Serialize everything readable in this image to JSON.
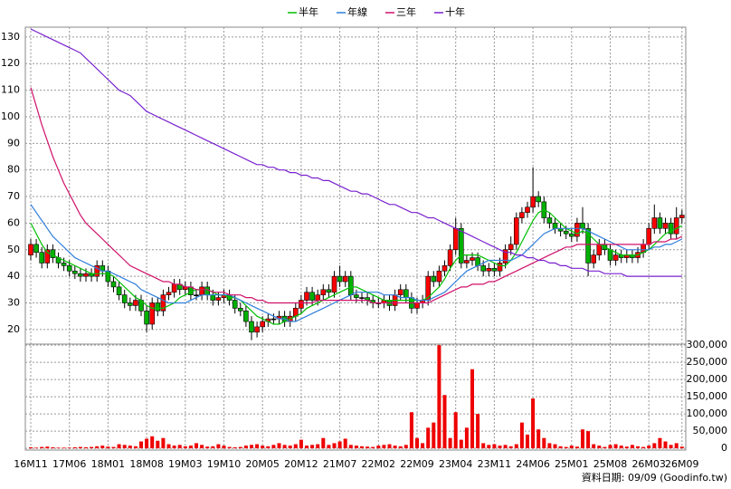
{
  "chart_data": [
    {
      "type": "candlestick",
      "categories": [
        "16M11",
        null,
        null,
        null,
        null,
        null,
        null,
        "17M06",
        null,
        null,
        null,
        null,
        null,
        null,
        "18M01",
        null,
        null,
        null,
        null,
        null,
        null,
        "18M08",
        null,
        null,
        null,
        null,
        null,
        null,
        "19M03",
        null,
        null,
        null,
        null,
        null,
        null,
        "19M10",
        null,
        null,
        null,
        null,
        null,
        null,
        "20M05",
        null,
        null,
        null,
        null,
        null,
        null,
        "20M12",
        null,
        null,
        null,
        null,
        null,
        null,
        "21M07",
        null,
        null,
        null,
        null,
        null,
        null,
        "22M02",
        null,
        null,
        null,
        null,
        null,
        null,
        "22M09",
        null,
        null,
        null,
        null,
        null,
        null,
        "23M04",
        null,
        null,
        null,
        null,
        null,
        null,
        "23M11",
        null,
        null,
        null,
        null,
        null,
        null,
        "24M06",
        null,
        null,
        null,
        null,
        null,
        null,
        "25M01",
        null,
        null,
        null,
        null,
        null,
        null,
        "25M08",
        null,
        null,
        null,
        null,
        null,
        null,
        "26M03",
        null,
        null,
        null,
        null,
        null,
        "26M09"
      ],
      "open": [
        48,
        52,
        49,
        45,
        50,
        47,
        45,
        44,
        42,
        41,
        40,
        41,
        40,
        44,
        42,
        38,
        36,
        33,
        30,
        29,
        31,
        27,
        22,
        30,
        27,
        33,
        34,
        37,
        35,
        36,
        33,
        33,
        36,
        33,
        31,
        32,
        33,
        31,
        28,
        27,
        23,
        19,
        21,
        23,
        24,
        24,
        25,
        23,
        25,
        28,
        31,
        34,
        31,
        33,
        35,
        34,
        40,
        38,
        40,
        33,
        32,
        32,
        31,
        30,
        30,
        31,
        29,
        33,
        35,
        32,
        28,
        30,
        31,
        40,
        38,
        42,
        44,
        50,
        58,
        45,
        46,
        47,
        44,
        42,
        43,
        42,
        45,
        50,
        52,
        62,
        64,
        66,
        70,
        68,
        62,
        60,
        58,
        57,
        56,
        55,
        60,
        58,
        45,
        48,
        52,
        50,
        46,
        48,
        47,
        48,
        47,
        49,
        52,
        58,
        62,
        58,
        60,
        56,
        62
      ],
      "high": [
        54,
        54,
        51,
        52,
        52,
        49,
        47,
        46,
        44,
        43,
        43,
        43,
        46,
        46,
        44,
        40,
        38,
        35,
        32,
        33,
        33,
        29,
        32,
        32,
        35,
        36,
        39,
        39,
        38,
        38,
        35,
        38,
        38,
        35,
        34,
        35,
        35,
        33,
        30,
        29,
        25,
        23,
        25,
        26,
        26,
        27,
        27,
        27,
        30,
        33,
        36,
        36,
        35,
        37,
        37,
        42,
        44,
        42,
        42,
        35,
        34,
        34,
        33,
        32,
        33,
        33,
        35,
        37,
        37,
        34,
        32,
        33,
        42,
        42,
        44,
        46,
        52,
        62,
        60,
        48,
        49,
        49,
        46,
        45,
        45,
        47,
        52,
        55,
        64,
        66,
        68,
        81,
        72,
        70,
        64,
        62,
        60,
        59,
        58,
        62,
        66,
        60,
        50,
        54,
        54,
        52,
        50,
        50,
        50,
        50,
        51,
        54,
        60,
        67,
        64,
        62,
        62,
        66,
        65
      ],
      "low": [
        46,
        47,
        43,
        43,
        45,
        43,
        42,
        40,
        39,
        38,
        38,
        38,
        38,
        40,
        36,
        34,
        31,
        28,
        27,
        27,
        25,
        19,
        20,
        25,
        25,
        31,
        32,
        33,
        33,
        31,
        31,
        31,
        31,
        29,
        29,
        30,
        29,
        26,
        25,
        21,
        16,
        17,
        19,
        21,
        22,
        22,
        21,
        21,
        23,
        26,
        29,
        29,
        29,
        31,
        32,
        32,
        36,
        36,
        31,
        30,
        30,
        29,
        28,
        28,
        28,
        27,
        27,
        31,
        30,
        26,
        26,
        28,
        29,
        36,
        36,
        40,
        42,
        48,
        43,
        43,
        44,
        42,
        40,
        40,
        40,
        40,
        43,
        48,
        50,
        60,
        62,
        64,
        66,
        60,
        58,
        56,
        55,
        54,
        53,
        53,
        56,
        40,
        43,
        46,
        48,
        44,
        44,
        45,
        45,
        45,
        45,
        47,
        50,
        56,
        56,
        56,
        54,
        54,
        60
      ],
      "close": [
        52,
        49,
        45,
        50,
        47,
        45,
        44,
        42,
        41,
        40,
        41,
        40,
        44,
        42,
        38,
        36,
        33,
        30,
        29,
        31,
        27,
        22,
        30,
        27,
        33,
        34,
        37,
        35,
        36,
        33,
        33,
        36,
        33,
        31,
        32,
        33,
        31,
        28,
        27,
        23,
        19,
        21,
        23,
        24,
        24,
        25,
        23,
        25,
        28,
        31,
        34,
        31,
        33,
        35,
        34,
        40,
        38,
        40,
        33,
        32,
        32,
        31,
        30,
        30,
        31,
        29,
        33,
        35,
        32,
        28,
        30,
        31,
        40,
        38,
        42,
        44,
        50,
        58,
        45,
        46,
        47,
        44,
        42,
        43,
        42,
        45,
        50,
        52,
        62,
        64,
        66,
        70,
        68,
        62,
        60,
        58,
        57,
        56,
        55,
        60,
        58,
        45,
        48,
        52,
        50,
        46,
        48,
        47,
        48,
        47,
        49,
        52,
        58,
        62,
        58,
        60,
        56,
        62,
        63
      ],
      "up_color": "#ff0000",
      "down_color": "#00b000",
      "series": [
        {
          "name": "半年",
          "color": "#00c000",
          "values": [
            60,
            56,
            52,
            49,
            48,
            47,
            46,
            45,
            44,
            43,
            42,
            41,
            41,
            41,
            41,
            40,
            38,
            36,
            34,
            32,
            31,
            29,
            28,
            28,
            28,
            29,
            30,
            32,
            33,
            34,
            35,
            35,
            35,
            34,
            33,
            33,
            32,
            32,
            31,
            29,
            27,
            25,
            24,
            23,
            22,
            22,
            23,
            24,
            25,
            26,
            28,
            29,
            30,
            31,
            32,
            33,
            34,
            35,
            36,
            36,
            35,
            34,
            33,
            32,
            31,
            31,
            31,
            31,
            31,
            31,
            31,
            31,
            32,
            34,
            36,
            39,
            43,
            46,
            48,
            48,
            48,
            48,
            47,
            46,
            45,
            44,
            44,
            46,
            49,
            53,
            57,
            61,
            64,
            65,
            64,
            62,
            60,
            58,
            57,
            56,
            57,
            56,
            54,
            52,
            51,
            50,
            49,
            48,
            48,
            48,
            48,
            49,
            50,
            52,
            54,
            56,
            57,
            58,
            59
          ]
        },
        {
          "name": "年線",
          "color": "#2f7fdc",
          "values": [
            67,
            64,
            61,
            58,
            55,
            53,
            51,
            49,
            47,
            46,
            45,
            44,
            43,
            42,
            42,
            41,
            40,
            39,
            38,
            37,
            35,
            34,
            33,
            32,
            31,
            30,
            30,
            30,
            30,
            31,
            32,
            33,
            33,
            33,
            33,
            33,
            33,
            32,
            31,
            30,
            29,
            28,
            27,
            26,
            25,
            24,
            24,
            23,
            23,
            24,
            25,
            26,
            27,
            28,
            29,
            30,
            31,
            32,
            33,
            34,
            34,
            34,
            34,
            34,
            33,
            33,
            33,
            32,
            32,
            32,
            31,
            31,
            31,
            32,
            33,
            34,
            36,
            38,
            40,
            42,
            43,
            44,
            45,
            46,
            46,
            46,
            46,
            46,
            47,
            48,
            50,
            52,
            54,
            56,
            57,
            58,
            58,
            58,
            58,
            58,
            58,
            57,
            56,
            55,
            54,
            53,
            52,
            51,
            50,
            50,
            50,
            50,
            50,
            51,
            51,
            52,
            52,
            53,
            54
          ]
        },
        {
          "name": "三年",
          "color": "#d0106a",
          "values": [
            111,
            104,
            97,
            91,
            85,
            80,
            75,
            71,
            67,
            63,
            60,
            58,
            56,
            54,
            52,
            50,
            48,
            46,
            44,
            43,
            42,
            41,
            40,
            39,
            38,
            38,
            37,
            37,
            36,
            36,
            35,
            35,
            35,
            34,
            34,
            34,
            33,
            33,
            33,
            32,
            32,
            31,
            31,
            30,
            30,
            30,
            30,
            30,
            30,
            30,
            30,
            30,
            31,
            31,
            31,
            31,
            31,
            31,
            31,
            31,
            31,
            31,
            30,
            30,
            30,
            30,
            30,
            30,
            30,
            30,
            30,
            30,
            30,
            31,
            32,
            33,
            34,
            35,
            36,
            36,
            37,
            37,
            37,
            38,
            38,
            39,
            40,
            41,
            42,
            43,
            44,
            45,
            46,
            47,
            48,
            49,
            50,
            51,
            51,
            52,
            52,
            52,
            52,
            52,
            52,
            52,
            52,
            52,
            52,
            52,
            52,
            52,
            52,
            53,
            53,
            53,
            54,
            54,
            55
          ]
        },
        {
          "name": "十年",
          "color": "#7a22d0",
          "values": [
            133,
            132,
            131,
            130,
            129,
            128,
            127,
            126,
            125,
            124,
            122,
            120,
            118,
            116,
            114,
            112,
            110,
            109,
            108,
            106,
            104,
            102,
            101,
            100,
            99,
            98,
            97,
            96,
            95,
            94,
            93,
            92,
            91,
            90,
            89,
            88,
            87,
            86,
            85,
            84,
            83,
            82,
            82,
            81,
            81,
            80,
            80,
            79,
            79,
            78,
            78,
            77,
            77,
            76,
            76,
            75,
            74,
            73,
            72,
            72,
            71,
            71,
            70,
            69,
            68,
            67,
            67,
            66,
            65,
            64,
            64,
            63,
            62,
            62,
            61,
            60,
            59,
            58,
            57,
            56,
            55,
            54,
            53,
            52,
            51,
            50,
            49,
            49,
            48,
            48,
            47,
            47,
            46,
            46,
            45,
            45,
            44,
            44,
            43,
            43,
            43,
            42,
            42,
            42,
            41,
            41,
            41,
            41,
            40,
            40,
            40,
            40,
            40,
            40,
            40,
            40,
            40,
            40,
            40
          ]
        }
      ],
      "ylim": [
        14.5,
        133.7
      ],
      "yticks": [
        20,
        30,
        40,
        50,
        60,
        70,
        80,
        90,
        100,
        110,
        120,
        130
      ],
      "grid": true
    },
    {
      "type": "bar",
      "values": [
        3000,
        2000,
        4000,
        5000,
        3000,
        2000,
        2000,
        2000,
        3000,
        4000,
        3000,
        4000,
        6000,
        8000,
        5000,
        4000,
        12000,
        10000,
        8000,
        6000,
        20000,
        28000,
        35000,
        22000,
        30000,
        12000,
        8000,
        10000,
        6000,
        8000,
        15000,
        10000,
        5000,
        6000,
        12000,
        8000,
        4000,
        3000,
        4000,
        8000,
        10000,
        12000,
        8000,
        6000,
        10000,
        15000,
        10000,
        8000,
        12000,
        25000,
        8000,
        10000,
        12000,
        30000,
        10000,
        15000,
        20000,
        28000,
        10000,
        8000,
        6000,
        5000,
        4000,
        8000,
        10000,
        12000,
        8000,
        6000,
        10000,
        105000,
        30000,
        15000,
        60000,
        75000,
        300000,
        155000,
        30000,
        105000,
        25000,
        60000,
        230000,
        100000,
        15000,
        10000,
        12000,
        8000,
        10000,
        6000,
        12000,
        75000,
        40000,
        145000,
        55000,
        30000,
        15000,
        12000,
        6000,
        4000,
        8000,
        5000,
        55000,
        50000,
        12000,
        8000,
        4000,
        10000,
        12000,
        8000,
        5000,
        10000,
        6000,
        4000,
        8000,
        15000,
        30000,
        20000,
        10000,
        15000,
        5000
      ],
      "color": "#ee0000",
      "ylim": [
        -5000,
        303000
      ],
      "yticks": [
        {
          "value": 0,
          "label": "0"
        },
        {
          "value": 50000,
          "label": "50,000"
        },
        {
          "value": 100000,
          "label": "100,000"
        },
        {
          "value": 150000,
          "label": "150,000"
        },
        {
          "value": 200000,
          "label": "200,000"
        },
        {
          "value": 250000,
          "label": "250,000"
        },
        {
          "value": 300000,
          "label": "300,000"
        }
      ],
      "grid": true,
      "note": "資料日期: 09/09 (Goodinfo.tw)"
    }
  ]
}
